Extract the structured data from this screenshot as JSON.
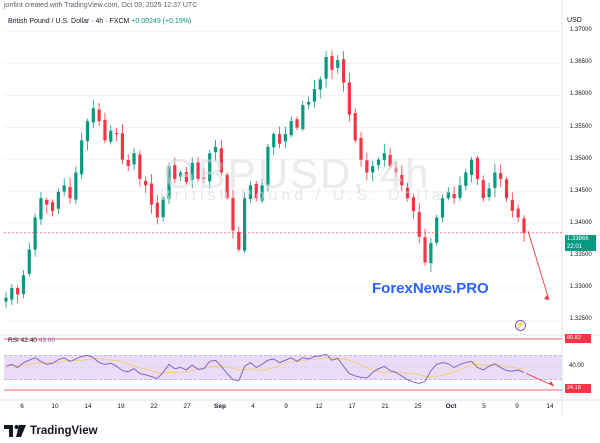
{
  "credit": "jonfint created with TradingView.com, Oct 09, 2025 12:37 UTC",
  "currency": "USD",
  "legend": {
    "symbol": "British Pound / U.S. Dollar · 4h · FXCM",
    "change": "+0.00249 (+0.19%)"
  },
  "watermark": {
    "ticker": "GBPUSD, 4h",
    "name": "British Pound / U.S. Dollar"
  },
  "site": "ForexNews.PRO",
  "price_badge": {
    "price": "1.33866",
    "time": "22:01"
  },
  "rsi": {
    "label": "RSI",
    "value": "42.40",
    "second": "43.00",
    "upper_badge": "80.82",
    "lower_badge": "24.18",
    "current_label": "40.00"
  },
  "brand": {
    "name": "TradingView"
  },
  "colors": {
    "up": "#089981",
    "down": "#f23645",
    "rsi_line": "#7e57c2",
    "rsi_ma": "#f7c948",
    "rsi_band": "#e9dcf6",
    "arrow": "#f23645",
    "site": "#2962ff"
  },
  "chart_data": {
    "type": "candlestick",
    "symbol": "GBPUSD",
    "timeframe": "4h",
    "y_ticks": [
      "1.37000",
      "1.36500",
      "1.36000",
      "1.35500",
      "1.35000",
      "1.34500",
      "1.34000",
      "1.33500",
      "1.33000",
      "1.32500"
    ],
    "ylim": [
      1.323,
      1.373
    ],
    "x_ticks": [
      {
        "label": "6",
        "bold": false
      },
      {
        "label": "10",
        "bold": false
      },
      {
        "label": "14",
        "bold": false
      },
      {
        "label": "19",
        "bold": false
      },
      {
        "label": "22",
        "bold": false
      },
      {
        "label": "27",
        "bold": false
      },
      {
        "label": "Sep",
        "bold": true
      },
      {
        "label": "4",
        "bold": false
      },
      {
        "label": "9",
        "bold": false
      },
      {
        "label": "12",
        "bold": false
      },
      {
        "label": "17",
        "bold": false
      },
      {
        "label": "21",
        "bold": false
      },
      {
        "label": "25",
        "bold": false
      },
      {
        "label": "Oct",
        "bold": true
      },
      {
        "label": "5",
        "bold": false
      },
      {
        "label": "9",
        "bold": false
      },
      {
        "label": "14",
        "bold": false
      }
    ],
    "close_path": [
      1.3285,
      1.33,
      1.329,
      1.332,
      1.336,
      1.341,
      1.344,
      1.343,
      1.342,
      1.345,
      1.346,
      1.344,
      1.348,
      1.353,
      1.356,
      1.358,
      1.356,
      1.353,
      1.3545,
      1.354,
      1.35,
      1.349,
      1.351,
      1.347,
      1.346,
      1.343,
      1.341,
      1.344,
      1.349,
      1.347,
      1.348,
      1.3465,
      1.3495,
      1.347,
      1.347,
      1.351,
      1.352,
      1.348,
      1.344,
      1.339,
      1.336,
      1.344,
      1.346,
      1.344,
      1.346,
      1.352,
      1.354,
      1.3525,
      1.354,
      1.356,
      1.355,
      1.3585,
      1.359,
      1.361,
      1.3625,
      1.366,
      1.364,
      1.3655,
      1.362,
      1.357,
      1.353,
      1.35,
      1.348,
      1.349,
      1.35,
      1.351,
      1.349,
      1.348,
      1.346,
      1.344,
      1.342,
      1.338,
      1.334,
      1.337,
      1.341,
      1.344,
      1.345,
      1.344,
      1.346,
      1.348,
      1.35,
      1.347,
      1.344,
      1.3455,
      1.348,
      1.347,
      1.344,
      1.342,
      1.341,
      1.3386
    ],
    "rsi_range": [
      0,
      100
    ],
    "rsi_levels": [
      70,
      30
    ],
    "rsi_path": [
      52,
      55,
      50,
      58,
      62,
      66,
      60,
      55,
      57,
      63,
      66,
      60,
      64,
      68,
      70,
      66,
      58,
      55,
      57,
      52,
      45,
      43,
      48,
      40,
      38,
      35,
      32,
      42,
      55,
      48,
      50,
      46,
      54,
      47,
      48,
      60,
      62,
      52,
      40,
      30,
      28,
      52,
      58,
      50,
      55,
      62,
      64,
      58,
      62,
      66,
      60,
      66,
      64,
      68,
      69,
      72,
      62,
      65,
      52,
      40,
      36,
      34,
      33,
      42,
      48,
      52,
      45,
      42,
      36,
      30,
      26,
      24,
      27,
      45,
      55,
      58,
      56,
      50,
      55,
      58,
      60,
      50,
      46,
      52,
      56,
      50,
      45,
      44,
      46,
      42
    ]
  }
}
